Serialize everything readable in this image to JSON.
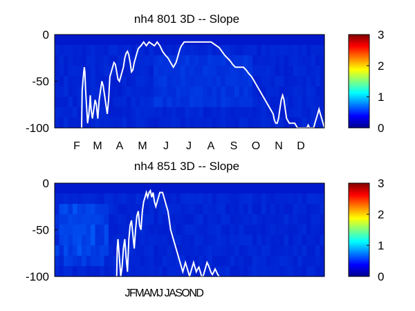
{
  "chart_data": [
    {
      "type": "heatmap",
      "title": "nh4  801 3D   -- Slope",
      "xlabel": "",
      "ylabel": "",
      "x_tick_labels": [
        "F",
        "M",
        "A",
        "M",
        "J",
        "J",
        "A",
        "S",
        "O",
        "N",
        "D"
      ],
      "y_tick_labels": [
        "0",
        "-50",
        "-100"
      ],
      "ylim": [
        -100,
        0
      ],
      "colorbar": {
        "range": [
          0,
          3
        ],
        "tick_labels": [
          "0",
          "1",
          "2",
          "3"
        ],
        "colormap": "jet"
      },
      "field_note": "mostly low values (~0.2-0.5), slightly higher patch mid-year",
      "line": {
        "color": "#ffffff",
        "x_fraction": [
          0.1,
          0.102,
          0.105,
          0.108,
          0.11,
          0.112,
          0.115,
          0.12,
          0.122,
          0.127,
          0.13,
          0.132,
          0.135,
          0.14,
          0.145,
          0.15,
          0.155,
          0.158,
          0.16,
          0.165,
          0.17,
          0.175,
          0.18,
          0.185,
          0.19,
          0.195,
          0.2,
          0.205,
          0.21,
          0.215,
          0.22,
          0.225,
          0.23,
          0.235,
          0.24,
          0.245,
          0.25,
          0.255,
          0.26,
          0.265,
          0.27,
          0.275,
          0.28,
          0.285,
          0.29,
          0.295,
          0.3,
          0.305,
          0.31,
          0.32,
          0.33,
          0.34,
          0.35,
          0.36,
          0.37,
          0.38,
          0.39,
          0.4,
          0.41,
          0.42,
          0.43,
          0.44,
          0.45,
          0.455,
          0.46,
          0.465,
          0.47,
          0.475,
          0.48,
          0.49,
          0.5,
          0.51,
          0.52,
          0.53,
          0.54,
          0.55,
          0.56,
          0.57,
          0.58,
          0.59,
          0.6,
          0.61,
          0.62,
          0.63,
          0.64,
          0.65,
          0.66,
          0.67,
          0.68,
          0.69,
          0.7,
          0.71,
          0.72,
          0.73,
          0.74,
          0.75,
          0.76,
          0.77,
          0.78,
          0.79,
          0.8,
          0.81,
          0.815,
          0.82,
          0.825,
          0.83,
          0.835,
          0.84,
          0.845,
          0.85,
          0.855,
          0.86,
          0.87,
          0.88,
          0.89,
          0.9,
          0.91,
          0.92,
          0.93,
          0.935,
          0.94,
          0.945,
          0.95,
          0.955,
          0.96,
          0.965,
          0.97,
          0.975,
          0.98,
          0.985,
          0.99,
          0.995,
          1.0
        ],
        "y": [
          -100,
          -60,
          -50,
          -40,
          -35,
          -40,
          -60,
          -85,
          -95,
          -85,
          -75,
          -65,
          -80,
          -90,
          -80,
          -70,
          -75,
          -85,
          -90,
          -70,
          -60,
          -50,
          -55,
          -65,
          -75,
          -85,
          -70,
          -45,
          -40,
          -35,
          -30,
          -32,
          -40,
          -48,
          -50,
          -45,
          -40,
          -35,
          -25,
          -20,
          -18,
          -22,
          -30,
          -40,
          -38,
          -30,
          -25,
          -20,
          -15,
          -12,
          -8,
          -12,
          -8,
          -10,
          -12,
          -8,
          -12,
          -18,
          -22,
          -25,
          -30,
          -35,
          -30,
          -25,
          -20,
          -15,
          -12,
          -10,
          -8,
          -8,
          -8,
          -8,
          -8,
          -8,
          -8,
          -8,
          -8,
          -8,
          -8,
          -10,
          -12,
          -14,
          -18,
          -22,
          -25,
          -28,
          -32,
          -35,
          -35,
          -35,
          -35,
          -38,
          -42,
          -45,
          -50,
          -55,
          -60,
          -65,
          -70,
          -75,
          -80,
          -85,
          -92,
          -95,
          -95,
          -90,
          -80,
          -70,
          -65,
          -70,
          -80,
          -90,
          -95,
          -95,
          -95,
          -100,
          -100,
          -100,
          -100,
          -100,
          -97,
          -100,
          -100,
          -100,
          -100,
          -95,
          -90,
          -85,
          -80,
          -85,
          -90,
          -95,
          -100
        ]
      }
    },
    {
      "type": "heatmap",
      "title": "nh4  851 3D   -- Slope",
      "xlabel": "",
      "ylabel": "",
      "x_tick_labels": [
        "JFMAMJ JASOND"
      ],
      "y_tick_labels": [
        "0",
        "-50",
        "-100"
      ],
      "ylim": [
        -100,
        0
      ],
      "colorbar": {
        "range": [
          0,
          3
        ],
        "tick_labels": [
          "0",
          "1",
          "2",
          "3"
        ],
        "colormap": "jet"
      },
      "field_note": "low values throughout, lighter streaks in early part of record",
      "line": {
        "color": "#ffffff",
        "x_fraction": [
          0.23,
          0.232,
          0.235,
          0.24,
          0.245,
          0.25,
          0.255,
          0.26,
          0.265,
          0.27,
          0.275,
          0.28,
          0.285,
          0.29,
          0.295,
          0.3,
          0.305,
          0.31,
          0.315,
          0.32,
          0.325,
          0.33,
          0.335,
          0.34,
          0.345,
          0.35,
          0.355,
          0.36,
          0.365,
          0.37,
          0.375,
          0.38,
          0.385,
          0.39,
          0.395,
          0.4,
          0.405,
          0.41,
          0.415,
          0.42,
          0.425,
          0.43,
          0.435,
          0.44,
          0.445,
          0.45,
          0.455,
          0.46,
          0.465,
          0.47,
          0.475,
          0.48,
          0.485,
          0.49,
          0.495,
          0.5,
          0.505,
          0.51,
          0.515,
          0.52,
          0.525,
          0.53,
          0.535,
          0.54,
          0.545,
          0.55,
          0.555,
          0.56,
          0.565,
          0.57,
          0.575,
          0.58,
          0.585,
          0.59,
          0.595,
          0.6,
          0.605,
          0.61
        ],
        "y": [
          -100,
          -70,
          -60,
          -80,
          -100,
          -90,
          -70,
          -60,
          -80,
          -95,
          -60,
          -45,
          -40,
          -55,
          -70,
          -50,
          -35,
          -30,
          -45,
          -50,
          -30,
          -20,
          -15,
          -10,
          -15,
          -10,
          -8,
          -15,
          -10,
          -20,
          -25,
          -20,
          -15,
          -10,
          -10,
          -10,
          -15,
          -20,
          -25,
          -30,
          -40,
          -50,
          -55,
          -60,
          -65,
          -70,
          -75,
          -80,
          -85,
          -90,
          -95,
          -90,
          -85,
          -90,
          -95,
          -100,
          -95,
          -90,
          -85,
          -90,
          -95,
          -92,
          -90,
          -95,
          -100,
          -100,
          -95,
          -90,
          -85,
          -88,
          -92,
          -96,
          -98,
          -95,
          -92,
          -95,
          -98,
          -100
        ]
      }
    }
  ]
}
